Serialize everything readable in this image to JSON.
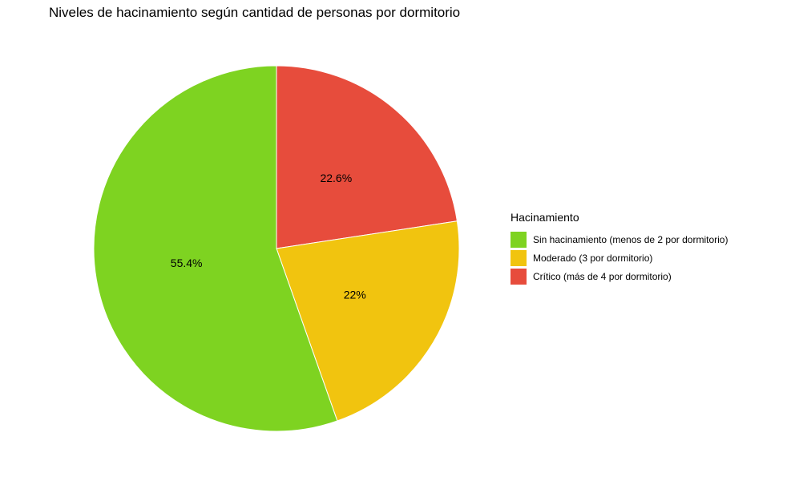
{
  "chart_data": {
    "type": "pie",
    "title": "Niveles de hacinamiento según cantidad de personas por dormitorio",
    "legend_title": "Hacinamiento",
    "legend_position": "right",
    "slices": [
      {
        "label": "Sin hacinamiento (menos de 2 por dormitorio)",
        "value": 55.4,
        "value_label": "55.4%",
        "color": "#7ED321"
      },
      {
        "label": "Moderado (3 por dormitorio)",
        "value": 22.0,
        "value_label": "22%",
        "color": "#F1C40F"
      },
      {
        "label": "Crítico (más de 4 por dormitorio)",
        "value": 22.6,
        "value_label": "22.6%",
        "color": "#E74C3C"
      }
    ]
  }
}
